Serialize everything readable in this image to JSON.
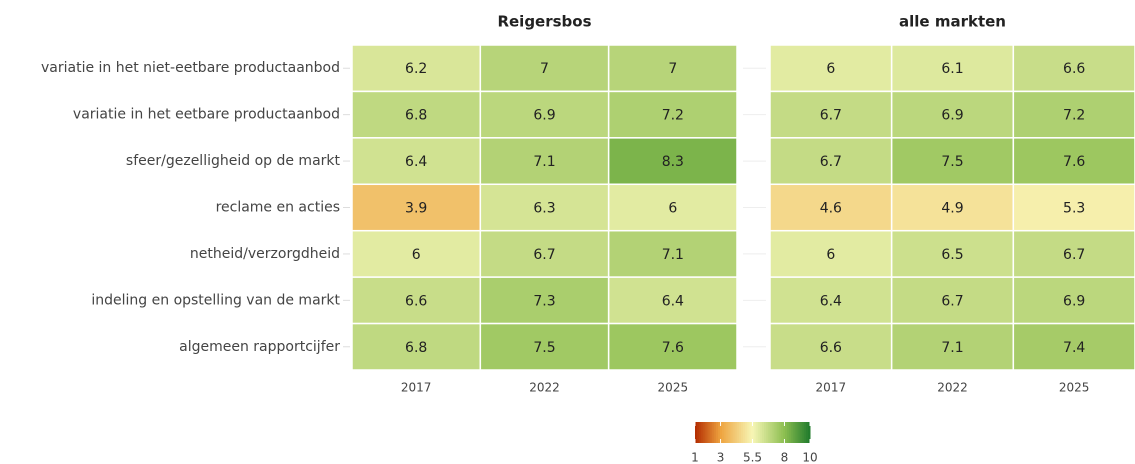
{
  "chart_data": {
    "type": "heatmap",
    "categories": [
      "variatie in het niet-eetbare productaanbod",
      "variatie in het eetbare productaanbod",
      "sfeer/gezelligheid op de markt",
      "reclame en acties",
      "netheid/verzorgdheid",
      "indeling en opstelling van de markt",
      "algemeen rapportcijfer"
    ],
    "panels": [
      {
        "title": "Reigersbos",
        "x": [
          "2017",
          "2022",
          "2025"
        ],
        "values": [
          [
            6.2,
            7,
            7
          ],
          [
            6.8,
            6.9,
            7.2
          ],
          [
            6.4,
            7.1,
            8.3
          ],
          [
            3.9,
            6.3,
            6
          ],
          [
            6,
            6.7,
            7.1
          ],
          [
            6.6,
            7.3,
            6.4
          ],
          [
            6.8,
            7.5,
            7.6
          ]
        ]
      },
      {
        "title": "alle markten",
        "x": [
          "2017",
          "2022",
          "2025"
        ],
        "values": [
          [
            6,
            6.1,
            6.6
          ],
          [
            6.7,
            6.9,
            7.2
          ],
          [
            6.7,
            7.5,
            7.6
          ],
          [
            4.6,
            4.9,
            5.3
          ],
          [
            6,
            6.5,
            6.7
          ],
          [
            6.4,
            6.7,
            6.9
          ],
          [
            6.6,
            7.1,
            7.4
          ]
        ]
      }
    ],
    "colorbar": {
      "lim": [
        1,
        10
      ],
      "ticks": [
        1,
        3,
        5.5,
        8,
        10
      ],
      "colors": [
        "#b22a00",
        "#eea33f",
        "#f7f6b6",
        "#8cbe50",
        "#1f7a2c"
      ]
    }
  }
}
